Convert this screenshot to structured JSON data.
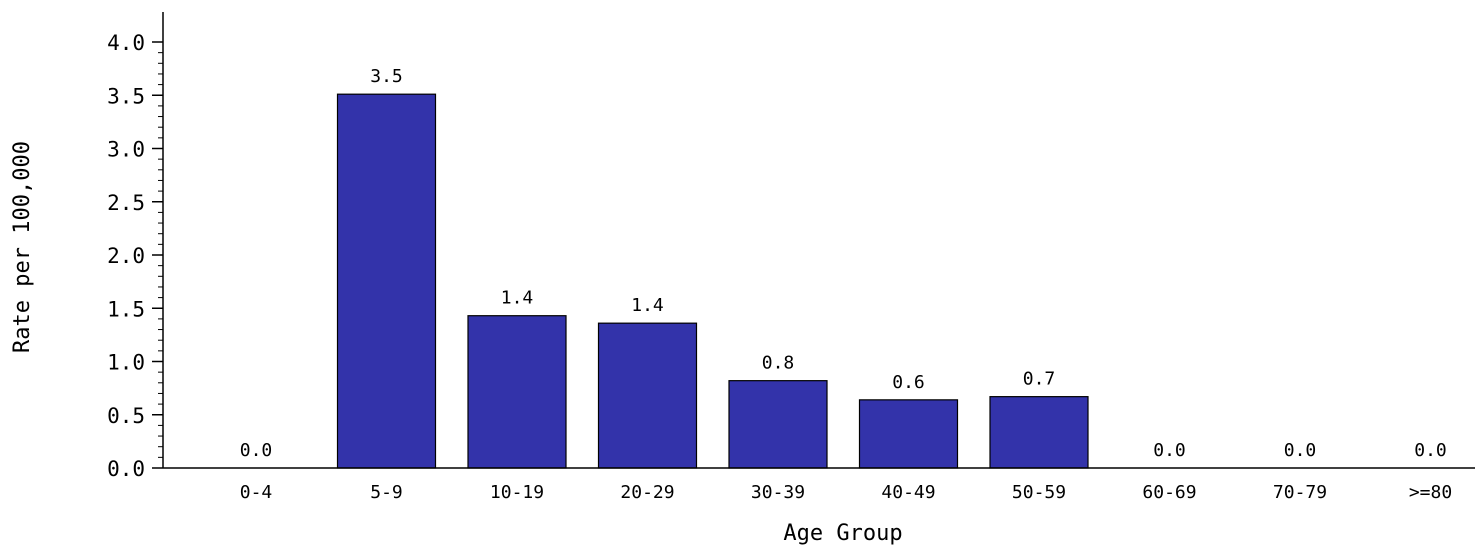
{
  "chart_data": {
    "type": "bar",
    "title": "",
    "xlabel": "Age Group",
    "ylabel": "Rate per 100,000",
    "categories": [
      "0-4",
      "5-9",
      "10-19",
      "20-29",
      "30-39",
      "40-49",
      "50-59",
      "60-69",
      "70-79",
      ">=80"
    ],
    "values": [
      0.0,
      3.51,
      1.43,
      1.36,
      0.82,
      0.64,
      0.67,
      0.0,
      0.0,
      0.0
    ],
    "data_labels": [
      "0.0",
      "3.5",
      "1.4",
      "1.4",
      "0.8",
      "0.6",
      "0.7",
      "0.0",
      "0.0",
      "0.0"
    ],
    "ylim": [
      0,
      4.0
    ],
    "yticks": [
      "0.0",
      "0.5",
      "1.0",
      "1.5",
      "2.0",
      "2.5",
      "3.0",
      "3.5",
      "4.0"
    ],
    "ytick_values": [
      0,
      0.5,
      1.0,
      1.5,
      2.0,
      2.5,
      3.0,
      3.5,
      4.0
    ],
    "minor_ticks_per_major": 5,
    "grid": false,
    "legend": "none",
    "bar_color": "#3333AA",
    "bar_edge_color": "#000000"
  }
}
